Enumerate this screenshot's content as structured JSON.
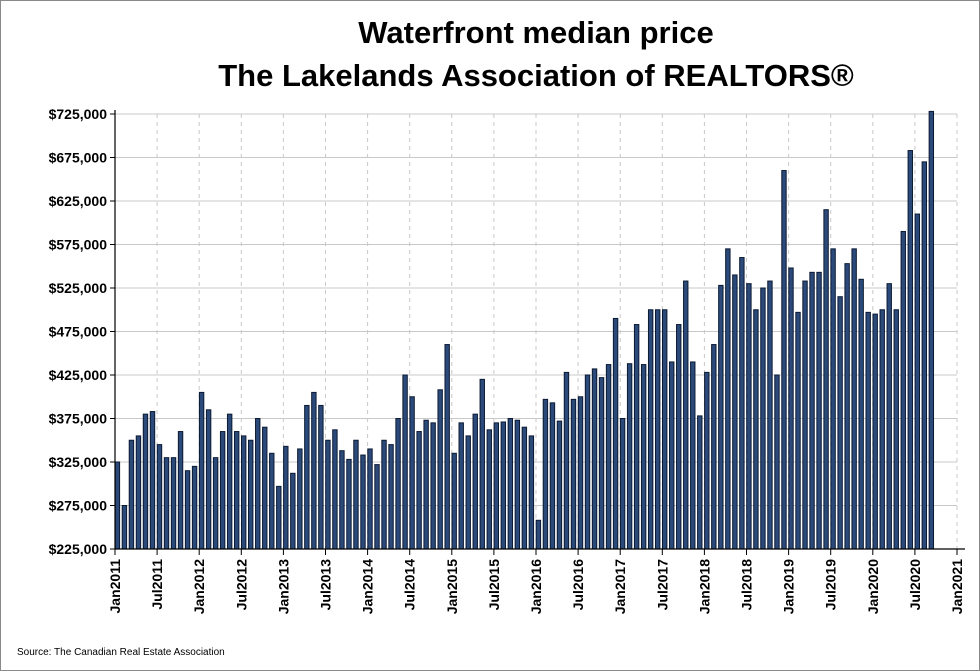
{
  "chart_data": {
    "type": "bar",
    "title": "Waterfront median price",
    "subtitle": "The Lakelands Association of REALTORS®",
    "source": "Source: The Canadian Real Estate Association",
    "ylim": [
      225000,
      725000
    ],
    "y_ticks": [
      225000,
      275000,
      325000,
      375000,
      425000,
      475000,
      525000,
      575000,
      625000,
      675000,
      725000
    ],
    "y_tick_labels": [
      "$225,000",
      "$275,000",
      "$325,000",
      "$375,000",
      "$425,000",
      "$475,000",
      "$525,000",
      "$575,000",
      "$625,000",
      "$675,000",
      "$725,000"
    ],
    "x_tick_labels": [
      "Jan2011",
      "Jul2011",
      "Jan2012",
      "Jul2012",
      "Jan2013",
      "Jul2013",
      "Jan2014",
      "Jul2014",
      "Jan2015",
      "Jul2015",
      "Jan2016",
      "Jul2016",
      "Jan2017",
      "Jul2017",
      "Jan2018",
      "Jul2018",
      "Jan2019",
      "Jul2019",
      "Jan2020",
      "Jul2020",
      "Jan2021"
    ],
    "grid": true,
    "colors": {
      "bar_fill": "#2b4a7a",
      "bar_edge": "#0b1a33",
      "grid": "#c8c8c8"
    },
    "start_month": "2011-01",
    "values": [
      325000,
      275000,
      350000,
      355000,
      380000,
      383000,
      345000,
      330000,
      330000,
      360000,
      315000,
      320000,
      405000,
      385000,
      330000,
      360000,
      380000,
      360000,
      355000,
      350000,
      375000,
      365000,
      335000,
      297000,
      343000,
      312000,
      340000,
      390000,
      405000,
      390000,
      350000,
      362000,
      338000,
      328000,
      350000,
      333000,
      340000,
      322000,
      350000,
      345000,
      375000,
      425000,
      400000,
      360000,
      373000,
      370000,
      408000,
      460000,
      335000,
      370000,
      355000,
      380000,
      420000,
      362000,
      370000,
      371000,
      375000,
      373000,
      365000,
      355000,
      258000,
      397000,
      393000,
      372000,
      428000,
      397000,
      400000,
      425000,
      432000,
      422000,
      437000,
      490000,
      375000,
      438000,
      483000,
      437000,
      500000,
      500000,
      500000,
      440000,
      483000,
      533000,
      440000,
      378000,
      428000,
      460000,
      528000,
      570000,
      540000,
      560000,
      530000,
      500000,
      525000,
      533000,
      425000,
      660000,
      548000,
      497000,
      533000,
      543000,
      543000,
      615000,
      570000,
      515000,
      553000,
      570000,
      535000,
      497000,
      495000,
      500000,
      530000,
      500000,
      590000,
      683000,
      610000,
      670000,
      728000
    ]
  }
}
